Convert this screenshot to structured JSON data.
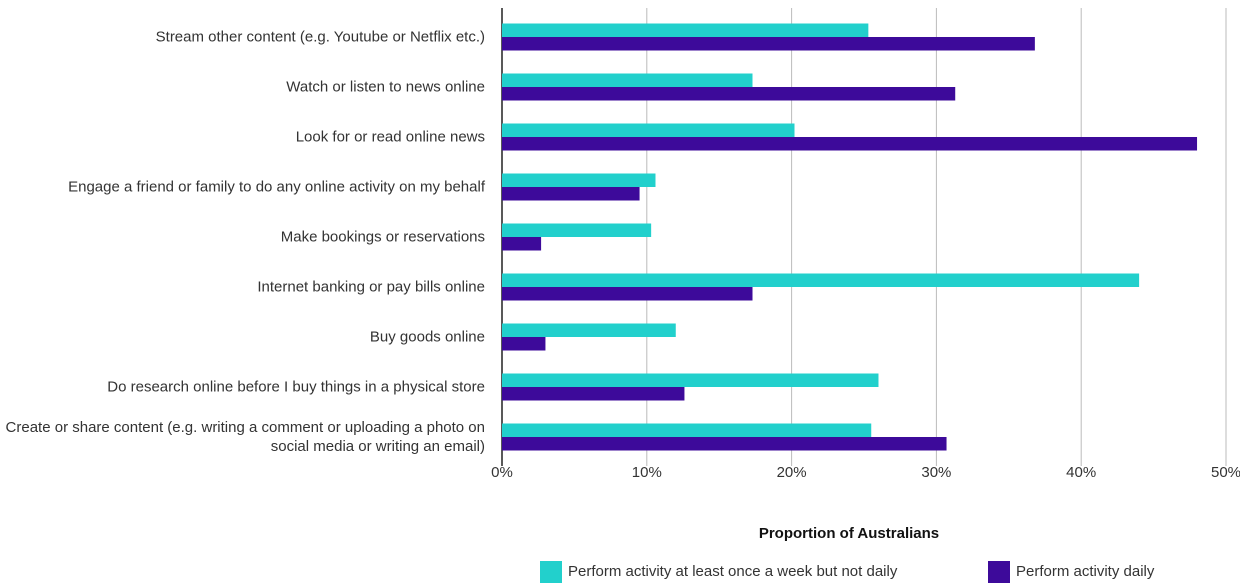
{
  "chart_data": {
    "type": "hbar",
    "xlabel": "Proportion of Australians",
    "categories": [
      "Stream other content (e.g. Youtube or Netflix etc.)",
      "Watch or listen to news online",
      "Look for or read online news",
      "Engage a friend or family to do any online activity on my behalf",
      "Make bookings or reservations",
      "Internet banking or pay bills online",
      "Buy goods online",
      "Do research online before I buy things in a physical store",
      "Create or share content (e.g. writing a comment or uploading a photo on social media or writing an email)"
    ],
    "series": [
      {
        "name": "Perform activity at least once a week but not daily",
        "color": "#22d0cc",
        "values": [
          25.3,
          17.3,
          20.2,
          10.6,
          10.3,
          44.0,
          12.0,
          26.0,
          25.5
        ]
      },
      {
        "name": "Perform activity daily",
        "color": "#3d0a9a",
        "values": [
          36.8,
          31.3,
          48.0,
          9.5,
          2.7,
          17.3,
          3.0,
          12.6,
          30.7
        ]
      }
    ],
    "xlim": [
      0,
      50
    ],
    "xticks": [
      {
        "value": 0,
        "label": "0%"
      },
      {
        "value": 10,
        "label": "10%"
      },
      {
        "value": 20,
        "label": "20%"
      },
      {
        "value": 30,
        "label": "30%"
      },
      {
        "value": 40,
        "label": "40%"
      },
      {
        "value": 50,
        "label": "50%"
      }
    ],
    "grid": true,
    "legend": "bottom"
  }
}
